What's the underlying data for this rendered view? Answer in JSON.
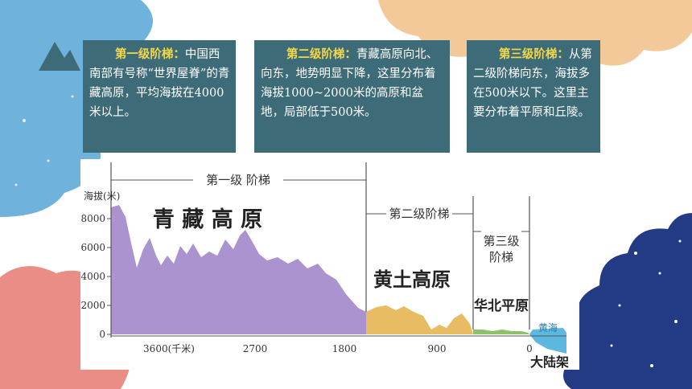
{
  "panels": [
    {
      "title": "第一级阶梯：",
      "body": "中国西南部有号称“世界屋脊”的青藏高原，平均海拔在4000米以上。"
    },
    {
      "title": "第二级阶梯：",
      "body": "青藏高原向北、向东，地势明显下降，这里分布着海拔1000~2000米的高原和盆地，局部低于500米。"
    },
    {
      "title": "第三级阶梯：",
      "body": "从第二级阶梯向东，海拔多在500米以下。这里主要分布着平原和丘陵。"
    }
  ],
  "diagram": {
    "y_axis_label": "海拔(米)",
    "y_ticks": [
      "8000",
      "6000",
      "4000",
      "2000",
      "0"
    ],
    "x_ticks": [
      "3600(千米)",
      "2700",
      "1800",
      "900",
      "0"
    ],
    "steps": [
      {
        "label": "第一级 阶梯",
        "region": "青 藏 高 原",
        "color": "#ab93cf"
      },
      {
        "label": "第二级阶梯",
        "region": "黄土高原",
        "color": "#e8bc63"
      },
      {
        "label": "第三级阶梯",
        "region": "华北平原",
        "color": "#8fc06a"
      }
    ],
    "sea_label": "黄海",
    "shelf_label": "大陆架",
    "sea_color": "#5db8df"
  }
}
